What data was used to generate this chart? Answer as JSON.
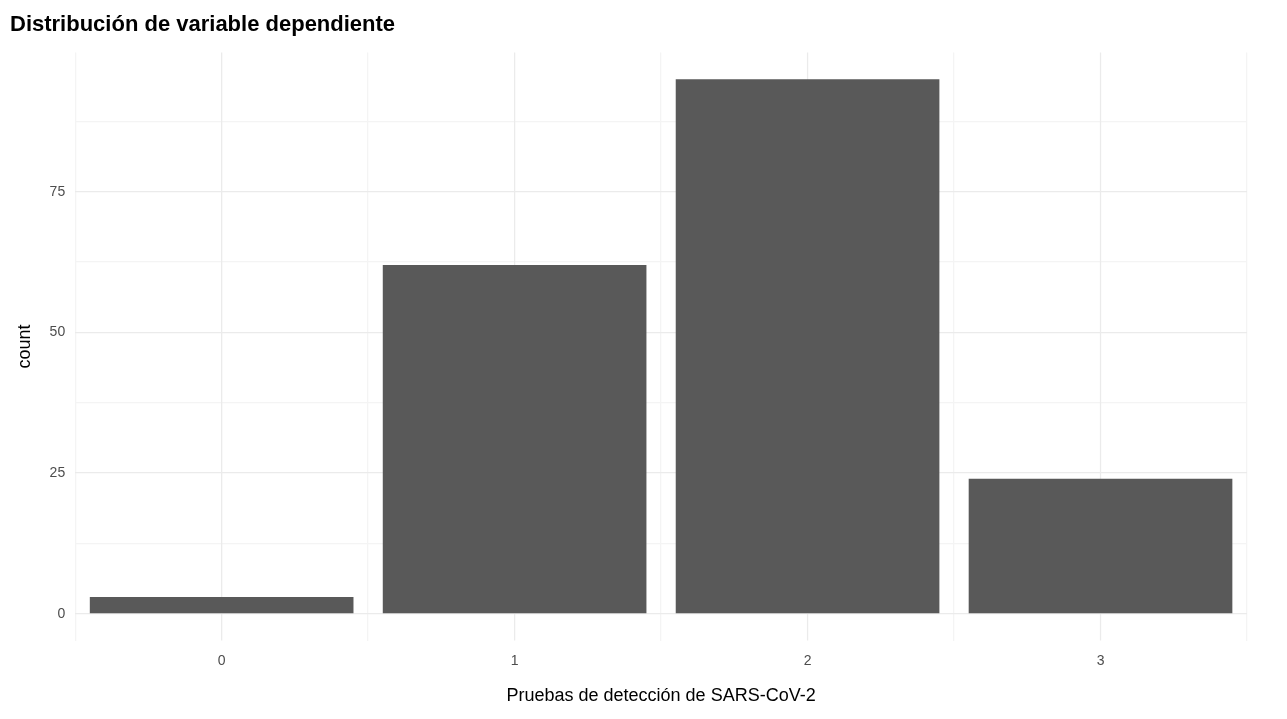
{
  "chart_data": {
    "type": "bar",
    "title": "Distribución de variable dependiente",
    "xlabel": "Pruebas de detección de SARS-CoV-2",
    "ylabel": "count",
    "categories": [
      "0",
      "1",
      "2",
      "3"
    ],
    "values": [
      3,
      62,
      95,
      24
    ],
    "color": "#595959",
    "ylim": [
      -4.75,
      99.75
    ],
    "yticks": [
      {
        "value": 0,
        "label": "0"
      },
      {
        "value": 12.5,
        "label": null
      },
      {
        "value": 25,
        "label": "25"
      },
      {
        "value": 37.5,
        "label": null
      },
      {
        "value": 50,
        "label": "50"
      },
      {
        "value": 62.5,
        "label": null
      },
      {
        "value": 75,
        "label": "75"
      },
      {
        "value": 87.5,
        "label": null
      }
    ],
    "grid": true
  }
}
